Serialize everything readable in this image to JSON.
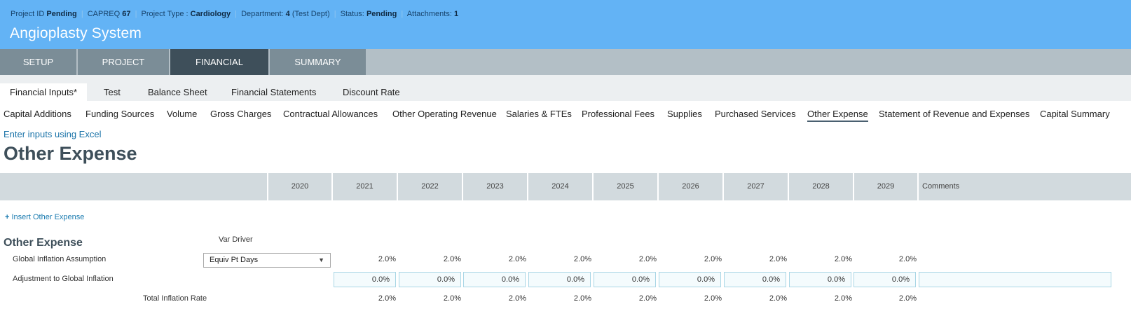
{
  "header": {
    "project_id_label": "Project ID",
    "project_id": "Pending",
    "capreq_label": "CAPREQ",
    "capreq": "67",
    "project_type_label": "Project Type :",
    "project_type": "Cardiology",
    "department_label": "Department:",
    "department_num": "4",
    "department_name": "(Test Dept)",
    "status_label": "Status:",
    "status": "Pending",
    "attachments_label": "Attachments:",
    "attachments": "1",
    "separator": "|",
    "title": "Angioplasty System"
  },
  "main_tabs": [
    "SETUP",
    "PROJECT",
    "FINANCIAL",
    "SUMMARY"
  ],
  "sub_tabs": [
    "Financial Inputs*",
    "Test",
    "Balance Sheet",
    "Financial Statements",
    "Discount Rate"
  ],
  "section_nav": [
    "Capital Additions",
    "Funding Sources",
    "Volume",
    "Gross Charges",
    "Contractual Allowances",
    "Other Operating Revenue",
    "Salaries & FTEs",
    "Professional Fees",
    "Supplies",
    "Purchased Services",
    "Other Expense",
    "Statement of Revenue and Expenses",
    "Capital Summary"
  ],
  "excel_link": "Enter inputs using Excel",
  "page_title": "Other Expense",
  "grid": {
    "years": [
      "2020",
      "2021",
      "2022",
      "2023",
      "2024",
      "2025",
      "2026",
      "2027",
      "2028",
      "2029"
    ],
    "comments_label": "Comments"
  },
  "insert_link": "Insert Other Expense",
  "section": {
    "heading": "Other Expense",
    "var_driver_label": "Var Driver",
    "driver_selected": "Equiv Pt Days",
    "rows": {
      "global_inflation": {
        "label": "Global Inflation Assumption",
        "values": [
          "2.0%",
          "2.0%",
          "2.0%",
          "2.0%",
          "2.0%",
          "2.0%",
          "2.0%",
          "2.0%",
          "2.0%"
        ]
      },
      "adjustment": {
        "label": "Adjustment to Global Inflation",
        "values": [
          "0.0%",
          "0.0%",
          "0.0%",
          "0.0%",
          "0.0%",
          "0.0%",
          "0.0%",
          "0.0%",
          "0.0%"
        ],
        "comment": ""
      },
      "total": {
        "label": "Total Inflation Rate",
        "values": [
          "2.0%",
          "2.0%",
          "2.0%",
          "2.0%",
          "2.0%",
          "2.0%",
          "2.0%",
          "2.0%",
          "2.0%"
        ]
      }
    }
  },
  "icons": {
    "dropdown": "caret-down-icon",
    "insert": "plus-icon"
  }
}
